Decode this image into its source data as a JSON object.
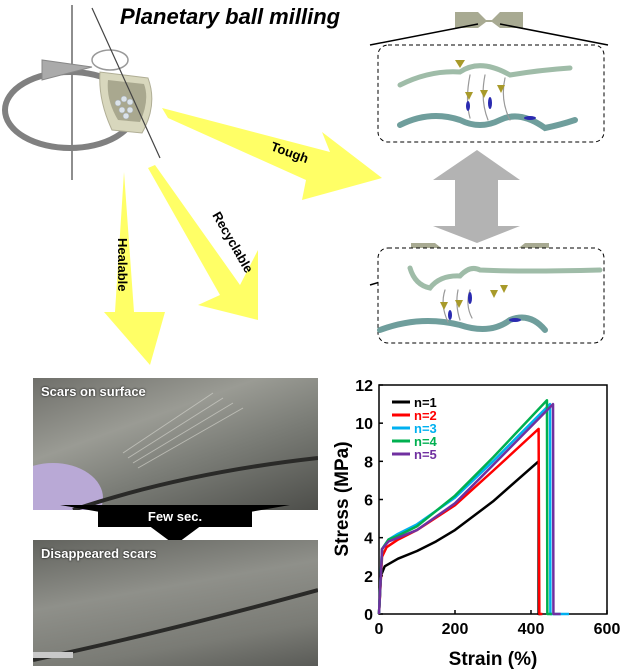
{
  "title": "Planetary ball milling",
  "arrows": {
    "tough": "Tough",
    "recyclable": "Recyclable",
    "healable": "Healable"
  },
  "photos": {
    "top_label": "Scars on surface",
    "bottom_label": "Disappeared scars",
    "transition": "Few sec."
  },
  "colors": {
    "arrow": "#ffff66",
    "double_arrow": "#b3b3b3",
    "dumbbell": "#a8aa92"
  },
  "chart_data": {
    "type": "line",
    "xlabel": "Strain (%)",
    "ylabel": "Stress (MPa)",
    "xlim": [
      0,
      600
    ],
    "ylim": [
      0,
      12
    ],
    "xticks": [
      "0",
      "200",
      "400",
      "600"
    ],
    "yticks": [
      "0",
      "2",
      "4",
      "6",
      "8",
      "10",
      "12"
    ],
    "legend": "top-left",
    "series": [
      {
        "name": "n=1",
        "color": "#000000",
        "points": [
          [
            0,
            0
          ],
          [
            5,
            2
          ],
          [
            15,
            2.5
          ],
          [
            50,
            2.9
          ],
          [
            100,
            3.3
          ],
          [
            150,
            3.8
          ],
          [
            200,
            4.4
          ],
          [
            300,
            5.9
          ],
          [
            420,
            8.0
          ],
          [
            420,
            0
          ],
          [
            425,
            0
          ]
        ]
      },
      {
        "name": "n=2",
        "color": "#ff0000",
        "points": [
          [
            0,
            0
          ],
          [
            8,
            3.0
          ],
          [
            20,
            3.5
          ],
          [
            50,
            3.9
          ],
          [
            100,
            4.4
          ],
          [
            200,
            5.7
          ],
          [
            300,
            7.5
          ],
          [
            420,
            9.7
          ],
          [
            422,
            0
          ],
          [
            430,
            0
          ]
        ]
      },
      {
        "name": "n=3",
        "color": "#00b0f0",
        "points": [
          [
            0,
            0
          ],
          [
            8,
            3.4
          ],
          [
            25,
            3.9
          ],
          [
            50,
            4.2
          ],
          [
            100,
            4.7
          ],
          [
            200,
            6.1
          ],
          [
            300,
            8.0
          ],
          [
            450,
            11.0
          ],
          [
            451,
            0
          ],
          [
            500,
            0
          ]
        ]
      },
      {
        "name": "n=4",
        "color": "#00b050",
        "points": [
          [
            0,
            0
          ],
          [
            8,
            3.4
          ],
          [
            25,
            3.9
          ],
          [
            50,
            4.1
          ],
          [
            100,
            4.6
          ],
          [
            200,
            6.2
          ],
          [
            300,
            8.2
          ],
          [
            442,
            11.2
          ],
          [
            443,
            0
          ],
          [
            455,
            0
          ]
        ]
      },
      {
        "name": "n=5",
        "color": "#7030a0",
        "points": [
          [
            0,
            0
          ],
          [
            8,
            3.4
          ],
          [
            25,
            3.8
          ],
          [
            50,
            4.0
          ],
          [
            100,
            4.4
          ],
          [
            200,
            5.8
          ],
          [
            300,
            7.8
          ],
          [
            458,
            11.0
          ],
          [
            459,
            0
          ],
          [
            478,
            0
          ]
        ]
      }
    ]
  }
}
